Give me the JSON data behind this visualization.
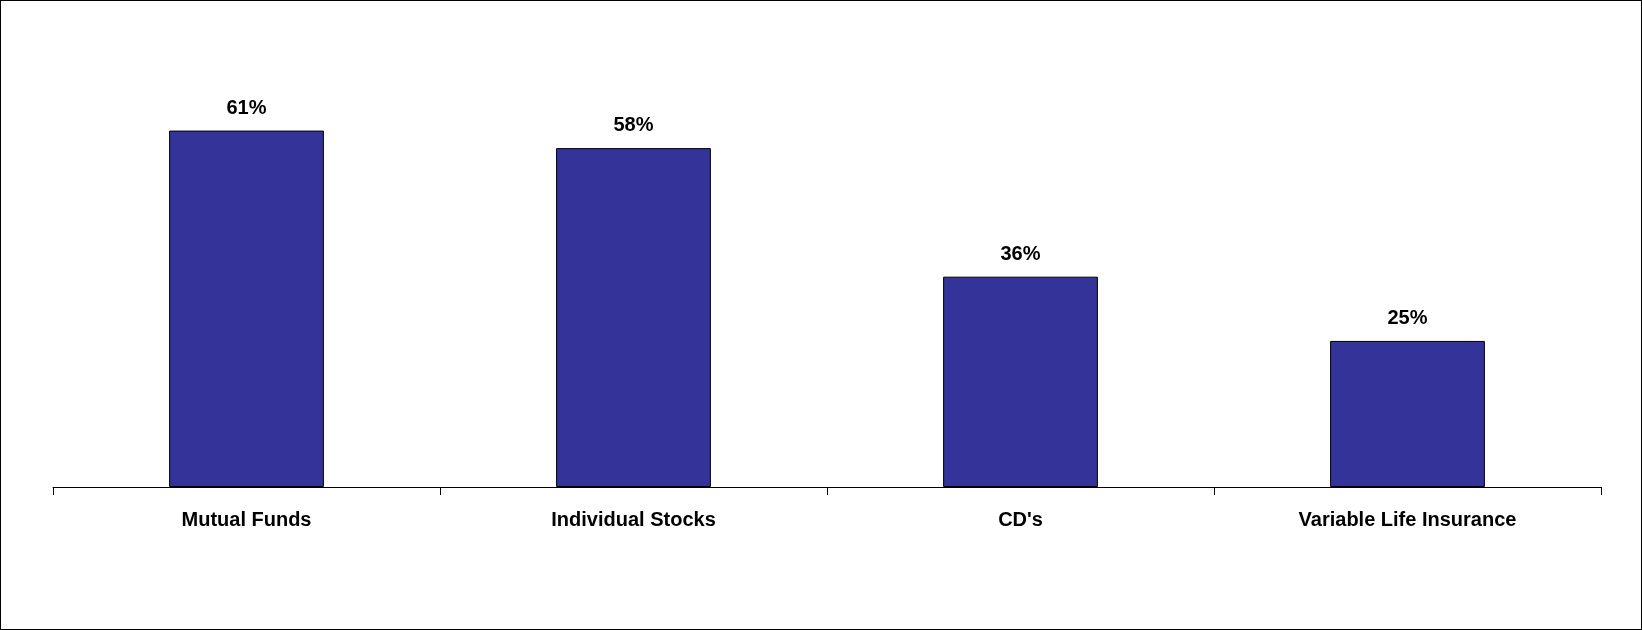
{
  "chart_data": {
    "type": "bar",
    "categories": [
      "Mutual Funds",
      "Individual Stocks",
      "CD's",
      "Variable Life Insurance"
    ],
    "values": [
      61,
      58,
      36,
      25
    ],
    "value_labels": [
      "61%",
      "58%",
      "36%",
      "25%"
    ],
    "color": "#333399"
  }
}
